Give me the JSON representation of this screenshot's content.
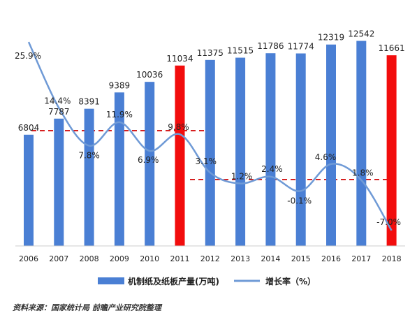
{
  "chart_data": {
    "type": "bar+line",
    "categories": [
      "2006",
      "2007",
      "2008",
      "2009",
      "2010",
      "2011",
      "2012",
      "2013",
      "2014",
      "2015",
      "2016",
      "2017",
      "2018"
    ],
    "series": [
      {
        "name": "机制纸及纸板产量(万吨)",
        "type": "bar",
        "values": [
          6804,
          7787,
          8391,
          9389,
          10036,
          11034,
          11375,
          11515,
          11786,
          11774,
          12319,
          12542,
          11661
        ],
        "value_labels": [
          "6804",
          "7787",
          "8391",
          "9389",
          "10036",
          "11034",
          "11375",
          "11515",
          "11786",
          "11774",
          "12319",
          "12542",
          "11661"
        ],
        "highlight_indices": [
          5,
          12
        ]
      },
      {
        "name": "增长率（%）",
        "type": "line",
        "values": [
          25.9,
          14.4,
          7.8,
          11.9,
          6.9,
          9.8,
          3.1,
          1.2,
          2.4,
          -0.1,
          4.6,
          1.8,
          -7.0
        ],
        "value_labels": [
          "25.9%",
          "14.4%",
          "7.8%",
          "11.9%",
          "6.9%",
          "9.8%",
          "3.1%",
          "1.2%",
          "2.4%",
          "-0.1%",
          "4.6%",
          "1.8%",
          "-7.0%"
        ]
      }
    ],
    "legend_position": "bottom",
    "colors": {
      "bar": "#4a7fd4",
      "bar_highlight": "#f20d0d",
      "line": "#6f9ad6",
      "reference_line": "#d62020"
    }
  },
  "source_note": "资料来源：国家统计局  前瞻产业研究院整理"
}
